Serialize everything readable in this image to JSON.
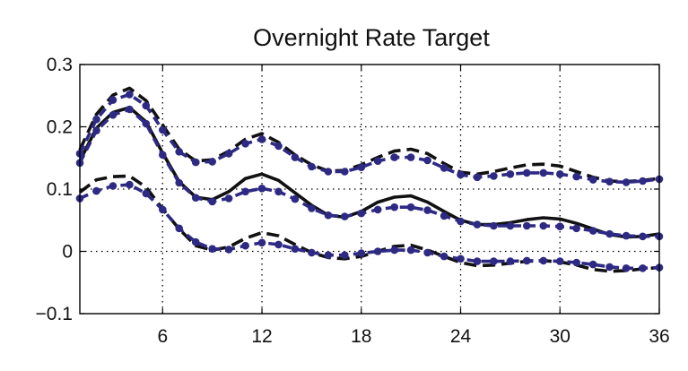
{
  "chart_data": {
    "type": "line",
    "title": "Overnight Rate Target",
    "xlabel": "",
    "ylabel": "",
    "xlim": [
      1,
      36
    ],
    "ylim": [
      -0.1,
      0.3
    ],
    "x_ticks": [
      6,
      12,
      18,
      24,
      30,
      36
    ],
    "x_tick_labels": [
      "6",
      "12",
      "18",
      "24",
      "30",
      "36"
    ],
    "y_ticks": [
      -0.1,
      0,
      0.1,
      0.2,
      0.3
    ],
    "y_tick_labels": [
      "−0.1",
      "0",
      "0.1",
      "0.2",
      "0.3"
    ],
    "grid": true,
    "x": [
      1,
      2,
      3,
      4,
      5,
      6,
      7,
      8,
      9,
      10,
      11,
      12,
      13,
      14,
      15,
      16,
      17,
      18,
      19,
      20,
      21,
      22,
      23,
      24,
      25,
      26,
      27,
      28,
      29,
      30,
      31,
      32,
      33,
      34,
      35,
      36
    ],
    "series": [
      {
        "style": "solid",
        "color": "#111111",
        "markers": false,
        "values": [
          0.145,
          0.198,
          0.223,
          0.231,
          0.208,
          0.158,
          0.112,
          0.087,
          0.083,
          0.096,
          0.117,
          0.124,
          0.114,
          0.094,
          0.074,
          0.058,
          0.055,
          0.064,
          0.079,
          0.087,
          0.089,
          0.079,
          0.064,
          0.05,
          0.043,
          0.043,
          0.046,
          0.051,
          0.054,
          0.052,
          0.045,
          0.036,
          0.027,
          0.023,
          0.024,
          0.028
        ]
      },
      {
        "style": "dashed",
        "color": "#111111",
        "markers": false,
        "values": [
          0.163,
          0.22,
          0.251,
          0.262,
          0.242,
          0.203,
          0.164,
          0.145,
          0.147,
          0.161,
          0.18,
          0.189,
          0.175,
          0.155,
          0.139,
          0.129,
          0.13,
          0.139,
          0.151,
          0.161,
          0.164,
          0.157,
          0.141,
          0.127,
          0.124,
          0.128,
          0.134,
          0.139,
          0.14,
          0.137,
          0.128,
          0.119,
          0.113,
          0.112,
          0.114,
          0.117
        ]
      },
      {
        "style": "dashed",
        "color": "#111111",
        "markers": false,
        "values": [
          0.095,
          0.115,
          0.12,
          0.121,
          0.103,
          0.068,
          0.036,
          0.009,
          0.002,
          0.007,
          0.021,
          0.03,
          0.025,
          0.011,
          -0.002,
          -0.01,
          -0.012,
          -0.008,
          0.0,
          0.008,
          0.01,
          0.002,
          -0.008,
          -0.018,
          -0.023,
          -0.022,
          -0.019,
          -0.016,
          -0.015,
          -0.017,
          -0.022,
          -0.029,
          -0.032,
          -0.031,
          -0.028,
          -0.026
        ]
      },
      {
        "style": "dashed-dotted",
        "color": "#2e2a84",
        "markers": true,
        "values": [
          0.157,
          0.212,
          0.243,
          0.252,
          0.234,
          0.195,
          0.16,
          0.143,
          0.144,
          0.157,
          0.173,
          0.18,
          0.169,
          0.151,
          0.136,
          0.128,
          0.128,
          0.135,
          0.145,
          0.151,
          0.151,
          0.146,
          0.134,
          0.123,
          0.119,
          0.121,
          0.124,
          0.126,
          0.126,
          0.124,
          0.12,
          0.115,
          0.112,
          0.111,
          0.113,
          0.116
        ]
      },
      {
        "style": "dashed-dotted",
        "color": "#2e2a84",
        "markers": true,
        "values": [
          0.142,
          0.194,
          0.219,
          0.228,
          0.205,
          0.155,
          0.11,
          0.086,
          0.08,
          0.085,
          0.096,
          0.101,
          0.096,
          0.084,
          0.069,
          0.058,
          0.056,
          0.061,
          0.067,
          0.071,
          0.071,
          0.066,
          0.057,
          0.048,
          0.043,
          0.041,
          0.041,
          0.041,
          0.041,
          0.04,
          0.037,
          0.033,
          0.028,
          0.025,
          0.024,
          0.024
        ]
      },
      {
        "style": "dashed-dotted",
        "color": "#2e2a84",
        "markers": true,
        "values": [
          0.085,
          0.097,
          0.105,
          0.107,
          0.093,
          0.067,
          0.037,
          0.015,
          0.004,
          0.003,
          0.009,
          0.014,
          0.011,
          0.004,
          -0.002,
          -0.006,
          -0.006,
          -0.003,
          0.0,
          0.002,
          0.002,
          -0.002,
          -0.008,
          -0.012,
          -0.016,
          -0.016,
          -0.016,
          -0.015,
          -0.015,
          -0.016,
          -0.018,
          -0.021,
          -0.025,
          -0.027,
          -0.027,
          -0.026
        ]
      }
    ]
  }
}
